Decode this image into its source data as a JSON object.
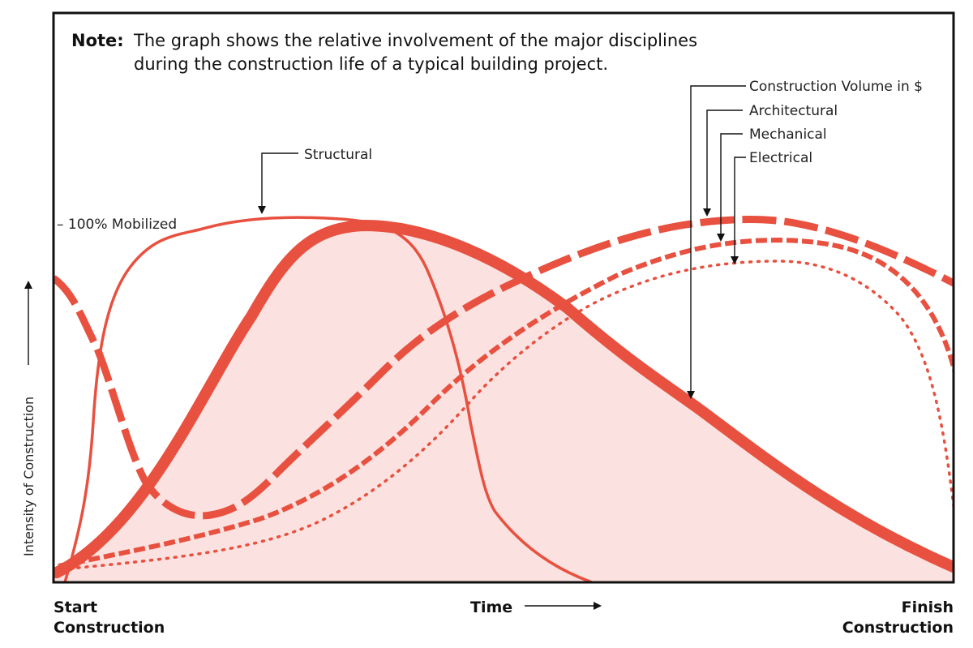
{
  "note": {
    "label": "Note:",
    "line1": "The graph shows the relative involvement of the major disciplines",
    "line2": "during the construction life of a typical building project."
  },
  "legend": {
    "construction_volume": "Construction Volume in $",
    "architectural": "Architectural",
    "mechanical": "Mechanical",
    "electrical": "Electrical",
    "structural": "Structural"
  },
  "mobilized_label": "– 100% Mobilized",
  "y_axis_label": "Intensity of Construction",
  "x_axis": {
    "start_line1": "Start",
    "start_line2": "Construction",
    "time": "Time",
    "finish_line1": "Finish",
    "finish_line2": "Construction"
  },
  "colors": {
    "curve": "#e8503f",
    "fill": "#fbe1df",
    "frame": "#111111"
  }
}
